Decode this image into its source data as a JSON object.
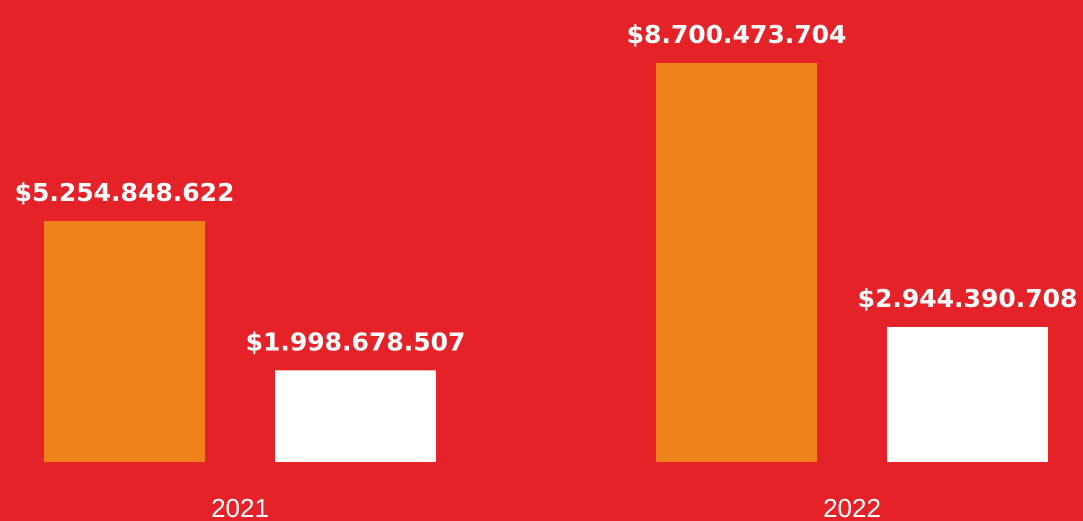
{
  "chart_data": {
    "type": "bar",
    "categories": [
      "2021",
      "2022"
    ],
    "series": [
      {
        "color": "#f0821b",
        "values": [
          5254848622,
          8700473704
        ],
        "value_labels": [
          "$5.254.848.622",
          "$8.700.473.704"
        ]
      },
      {
        "color": "#ffffff",
        "values": [
          1998678507,
          2944390708
        ],
        "value_labels": [
          "$1.998.678.507",
          "$2.944.390.708"
        ]
      }
    ]
  }
}
